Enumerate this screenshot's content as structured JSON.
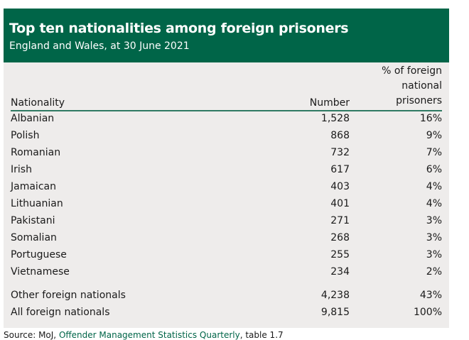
{
  "title": "Top ten nationalities among foreign prisoners",
  "subtitle": "England and Wales, at 30 June 2021",
  "columns": [
    "Nationality",
    "Number",
    "% of foreign national prisoners"
  ],
  "rows": [
    [
      "Albanian",
      "1,528",
      "16%"
    ],
    [
      "Polish",
      "868",
      "9%"
    ],
    [
      "Romanian",
      "732",
      "7%"
    ],
    [
      "Irish",
      "617",
      "6%"
    ],
    [
      "Jamaican",
      "403",
      "4%"
    ],
    [
      "Lithuanian",
      "401",
      "4%"
    ],
    [
      "Pakistani",
      "271",
      "3%"
    ],
    [
      "Somalian",
      "268",
      "3%"
    ],
    [
      "Portuguese",
      "255",
      "3%"
    ],
    [
      "Vietnamese",
      "234",
      "2%"
    ]
  ],
  "totals": [
    [
      "Other foreign nationals",
      "4,238",
      "43%"
    ],
    [
      "All foreign nationals",
      "9,815",
      "100%"
    ]
  ],
  "source": {
    "prefix": "Source: MoJ, ",
    "link": "Offender Management Statistics Quarterly",
    "suffix": ", table 1.7"
  }
}
